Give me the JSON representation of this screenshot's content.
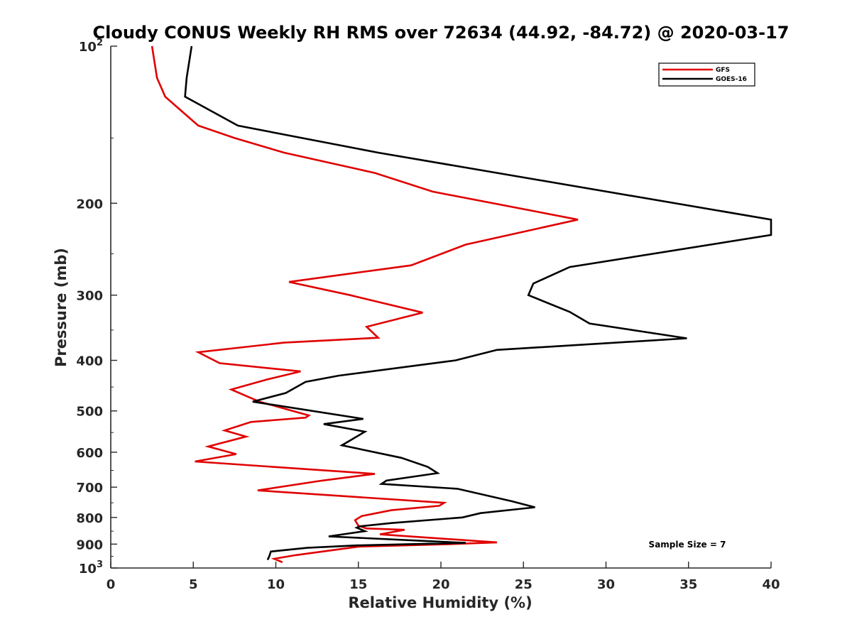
{
  "chart_data": {
    "type": "line",
    "title": "Cloudy CONUS Weekly RH RMS over 72634 (44.92, -84.72) @ 2020-03-17",
    "xlabel": "Relative Humidity (%)",
    "ylabel": "Pressure (mb)",
    "xlim": [
      0,
      40
    ],
    "ylim": [
      100,
      1000
    ],
    "y_scale": "log",
    "y_reversed": true,
    "grid": false,
    "legend_position": "top-right",
    "x_ticks": [
      0,
      5,
      10,
      15,
      20,
      25,
      30,
      35,
      40
    ],
    "x_tick_labels": [
      "0",
      "5",
      "10",
      "15",
      "20",
      "25",
      "30",
      "35",
      "40"
    ],
    "y_ticks": [
      200,
      300,
      400,
      500,
      600,
      700,
      800,
      900
    ],
    "y_tick_labels": [
      "200",
      "300",
      "400",
      "500",
      "600",
      "700",
      "800",
      "900"
    ],
    "y_tick_power_labels": [
      {
        "value": 100,
        "base": "10",
        "exp": "2"
      },
      {
        "value": 1000,
        "base": "10",
        "exp": "3"
      }
    ],
    "annotation": "Sample Size = 7",
    "series": [
      {
        "name": "GFS",
        "color": "#e00000",
        "points": [
          [
            2.5,
            100
          ],
          [
            2.8,
            115
          ],
          [
            3.3,
            125
          ],
          [
            5.3,
            142
          ],
          [
            7.5,
            150
          ],
          [
            10.5,
            160
          ],
          [
            16,
            175
          ],
          [
            19.5,
            190
          ],
          [
            28.3,
            215
          ],
          [
            21.5,
            240
          ],
          [
            18.2,
            263
          ],
          [
            10.8,
            283
          ],
          [
            14.5,
            300
          ],
          [
            16,
            308
          ],
          [
            18.9,
            324
          ],
          [
            15.5,
            345
          ],
          [
            16.2,
            362
          ],
          [
            10.5,
            370
          ],
          [
            5.3,
            386
          ],
          [
            6.6,
            405
          ],
          [
            11.5,
            420
          ],
          [
            9.5,
            435
          ],
          [
            7.3,
            455
          ],
          [
            9,
            480
          ],
          [
            12,
            510
          ],
          [
            11.8,
            515
          ],
          [
            8.5,
            525
          ],
          [
            6.9,
            545
          ],
          [
            8.2,
            560
          ],
          [
            5.9,
            585
          ],
          [
            7.6,
            605
          ],
          [
            5.1,
            625
          ],
          [
            16,
            660
          ],
          [
            12.8,
            680
          ],
          [
            8.9,
            710
          ],
          [
            20.2,
            750
          ],
          [
            19.9,
            760
          ],
          [
            17,
            775
          ],
          [
            15.2,
            795
          ],
          [
            14.8,
            810
          ],
          [
            15,
            830
          ],
          [
            15.5,
            840
          ],
          [
            17.8,
            845
          ],
          [
            16.3,
            862
          ],
          [
            23.4,
            893
          ],
          [
            20.5,
            900
          ],
          [
            15,
            910
          ],
          [
            11.2,
            945
          ],
          [
            9.9,
            960
          ],
          [
            10.4,
            975
          ]
        ]
      },
      {
        "name": "GOES-16",
        "color": "#000000",
        "points": [
          [
            4.9,
            100
          ],
          [
            4.6,
            115
          ],
          [
            4.5,
            125
          ],
          [
            7.7,
            142
          ],
          [
            16.2,
            160
          ],
          [
            40,
            215
          ],
          [
            40,
            230
          ],
          [
            27.8,
            265
          ],
          [
            25.6,
            285
          ],
          [
            25.3,
            300
          ],
          [
            27.8,
            323
          ],
          [
            29,
            340
          ],
          [
            34.9,
            363
          ],
          [
            23.4,
            382
          ],
          [
            20.9,
            400
          ],
          [
            13.8,
            428
          ],
          [
            11.8,
            440
          ],
          [
            10.6,
            462
          ],
          [
            8.6,
            480
          ],
          [
            15.3,
            518
          ],
          [
            12.9,
            530
          ],
          [
            15.4,
            548
          ],
          [
            14,
            582
          ],
          [
            17.6,
            615
          ],
          [
            19.2,
            640
          ],
          [
            19.8,
            658
          ],
          [
            16.7,
            680
          ],
          [
            16.4,
            690
          ],
          [
            21,
            705
          ],
          [
            24.3,
            745
          ],
          [
            25.7,
            765
          ],
          [
            22.4,
            785
          ],
          [
            21.3,
            800
          ],
          [
            17,
            820
          ],
          [
            15.1,
            832
          ],
          [
            14.9,
            837
          ],
          [
            15.4,
            850
          ],
          [
            13.2,
            870
          ],
          [
            21.5,
            895
          ],
          [
            15,
            905
          ],
          [
            11.9,
            915
          ],
          [
            9.7,
            930
          ],
          [
            9.6,
            950
          ],
          [
            9.5,
            965
          ]
        ]
      }
    ]
  }
}
